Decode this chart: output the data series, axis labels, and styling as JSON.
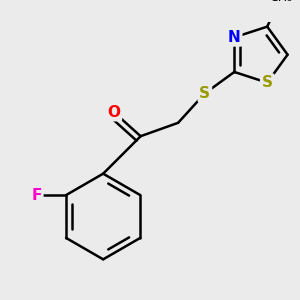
{
  "background_color": "#ebebeb",
  "bond_color": "#000000",
  "bond_width": 1.8,
  "figsize": [
    3.0,
    3.0
  ],
  "dpi": 100,
  "colors": {
    "O": "#ff0000",
    "F": "#ff00cc",
    "S": "#999900",
    "N": "#0000ff",
    "C": "#000000"
  },
  "fontsize": 11
}
